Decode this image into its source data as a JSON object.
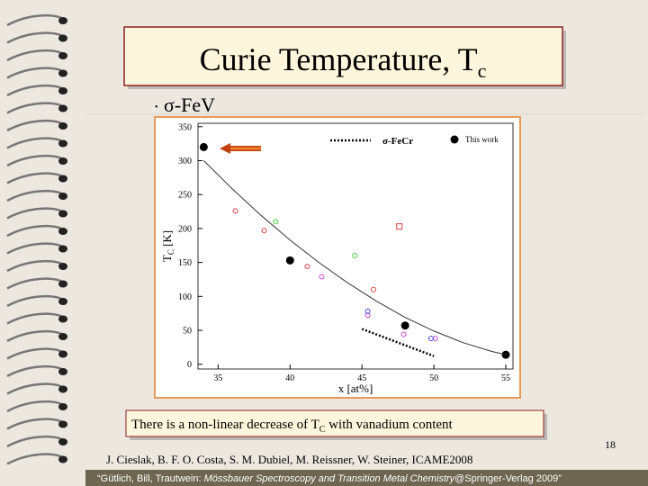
{
  "slide": {
    "title": {
      "text": "Curie Temperature, T",
      "sub": "c"
    },
    "bullet": "σ-FeV",
    "caption": {
      "before": "There is a non-linear decrease of T",
      "sub": "C",
      "after": " with vanadium content"
    },
    "page_number": "18",
    "citation": "J. Cieslak, B. F. O. Costa, S. M. Dubiel, M. Reissner, W. Steiner, ICAME2008",
    "footer": {
      "before": "“Gütlich, Bill, Trautwein: ",
      "italic": "Mössbauer Spectroscopy and Transition Metal Chemistry",
      "after": "@Springer-Verlag 2009”"
    }
  },
  "chart_data": {
    "type": "scatter",
    "xlabel": "x [at%]",
    "ylabel": {
      "text": "T",
      "sub": "C",
      "after": " [K]"
    },
    "xlim": [
      33.6,
      55.5
    ],
    "ylim": [
      -7,
      355
    ],
    "xticks": [
      35,
      40,
      45,
      50,
      55
    ],
    "yticks": [
      0,
      50,
      100,
      150,
      200,
      250,
      300,
      350
    ],
    "series": [
      {
        "name": "This work",
        "color": "#000000",
        "marker": "filled",
        "x": [
          34,
          40,
          48,
          55
        ],
        "values": [
          320,
          153,
          57,
          14
        ]
      },
      {
        "name": "σ-FeCr",
        "color": "#000000",
        "marker": "dotted-line",
        "x": [
          45,
          50
        ],
        "values": [
          52,
          12
        ]
      },
      {
        "color": "#333333",
        "marker": "line",
        "x": [
          34,
          36,
          38,
          40,
          42,
          44,
          46,
          48,
          50,
          52,
          54,
          55
        ],
        "values": [
          300,
          258,
          219,
          183,
          150,
          120,
          93,
          69,
          49,
          32,
          19,
          14
        ]
      },
      {
        "color": "#e04040",
        "marker": "open",
        "x": [
          36.2,
          38.2,
          41.2,
          45.8
        ],
        "values": [
          226,
          197,
          144,
          110
        ]
      },
      {
        "color": "#e04040",
        "marker": "square",
        "x": [
          47.6
        ],
        "values": [
          203
        ]
      },
      {
        "color": "#40d040",
        "marker": "open",
        "x": [
          39,
          44.5
        ],
        "values": [
          210,
          160
        ]
      },
      {
        "color": "#d040d0",
        "marker": "open",
        "x": [
          42.2,
          45.4,
          47.9,
          50.1
        ],
        "values": [
          129,
          72,
          44,
          38
        ]
      },
      {
        "color": "#4040e0",
        "marker": "open",
        "x": [
          45.4,
          49.8
        ],
        "values": [
          78,
          38
        ]
      }
    ]
  }
}
